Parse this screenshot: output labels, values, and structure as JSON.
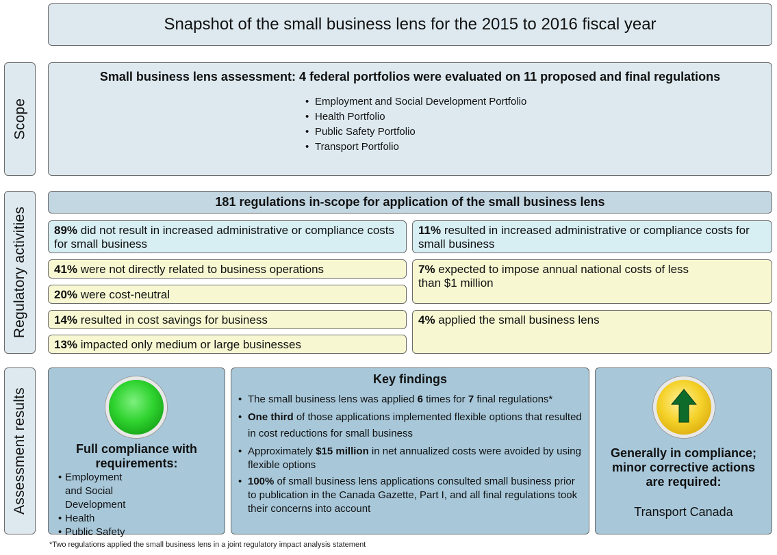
{
  "title": "Snapshot of the small business lens for the 2015 to 2016 fiscal year",
  "side_labels": {
    "scope": "Scope",
    "regulatory": "Regulatory activities",
    "assessment": "Assessment results"
  },
  "scope": {
    "heading": "Small business lens assessment: 4 federal portfolios were evaluated on 11 proposed and final regulations",
    "portfolios": [
      "Employment and Social Development Portfolio",
      "Health Portfolio",
      "Public Safety Portfolio",
      "Transport Portfolio"
    ]
  },
  "regulatory": {
    "banner": "181 regulations in-scope for application of the small business lens",
    "left": [
      {
        "pct": "89%",
        "text": " did not result in increased administrative or compliance costs for small business"
      },
      {
        "pct": "41%",
        "text": " were not directly related to business operations"
      },
      {
        "pct": "20%",
        "text": " were cost-neutral"
      },
      {
        "pct": "14%",
        "text": " resulted in cost savings for business"
      },
      {
        "pct": "13%",
        "text": " impacted only medium or large businesses"
      }
    ],
    "right": [
      {
        "pct": "11%",
        "text": " resulted in increased administrative or compliance costs for small business"
      },
      {
        "pct": "7%",
        "text": " expected to impose annual national costs of less than $1 million"
      },
      {
        "pct": "4%",
        "text": " applied the small business lens"
      }
    ]
  },
  "assessment": {
    "full": {
      "heading": "Full compliance with requirements:",
      "items": [
        "Employment and Social Development",
        "Health",
        "Public Safety"
      ],
      "indicator_icon": "green-circle-icon",
      "color": "#2fd32f"
    },
    "key_findings": {
      "heading": "Key findings",
      "items": [
        {
          "a": "The small business lens was applied ",
          "b1": "6",
          "c": " times for ",
          "b2": "7",
          "d": " final regulations*"
        },
        {
          "a": "",
          "b1": "One third",
          "c": " of those applications implemented flexible options that resulted in cost reductions for small business",
          "b2": "",
          "d": ""
        },
        {
          "a": "Approximately ",
          "b1": "$15 million",
          "c": " in net annualized costs were avoided by using flexible options",
          "b2": "",
          "d": ""
        },
        {
          "a": "",
          "b1": "100%",
          "c": " of small business lens applications consulted small business prior to publication in the Canada Gazette, Part I, and all final regulations took their concerns into account",
          "b2": "",
          "d": ""
        }
      ]
    },
    "general": {
      "heading": "Generally in compliance; minor corrective actions are required:",
      "entity": "Transport Canada",
      "indicator_icon": "up-arrow-icon",
      "color": "#f5d22a"
    }
  },
  "footnote": "*Two regulations applied the small business lens in a joint regulatory impact analysis statement"
}
